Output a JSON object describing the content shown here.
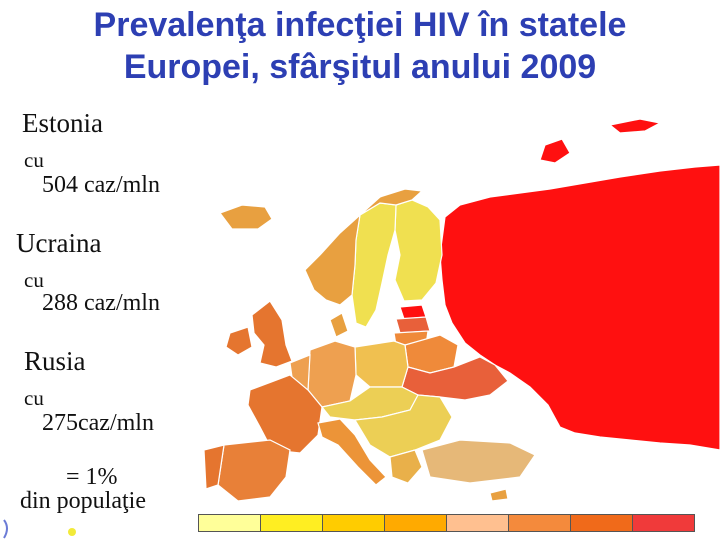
{
  "title": {
    "line1": "Prevalenţa infecţiei HIV în statele",
    "line2": "Europei, sfârşitul anului 2009"
  },
  "stats": [
    {
      "country": "Estonia",
      "prefix": "cu",
      "value": "504 caz/mln"
    },
    {
      "country": "Ucraina",
      "prefix": "cu",
      "value": "288 caz/mln"
    },
    {
      "country": "Rusia",
      "prefix": "cu",
      "value": "275caz/mln"
    }
  ],
  "summary": {
    "line1": "= 1%",
    "line2": "din populaţie"
  },
  "legend": {
    "colors": [
      "#ffff99",
      "#ffee22",
      "#ffcc00",
      "#ffaa00",
      "#ffc090",
      "#f48a3c",
      "#f06a1a",
      "#f03a3a",
      "#d0101a"
    ]
  },
  "map_colors": {
    "russia": "#ff1010",
    "ukraine": "#e8603a",
    "estonia": "#ff1010",
    "latvia": "#e8603a",
    "lithuania": "#ef8a3a",
    "belarus": "#ef8a3a",
    "finland": "#f0e050",
    "sweden": "#f0e050",
    "norway": "#e8a040",
    "uk": "#e5752f",
    "ireland": "#e5752f",
    "iceland": "#e8a040",
    "france": "#e5752f",
    "spain": "#e88038",
    "portugal": "#e5752f",
    "germany": "#eea050",
    "poland": "#f0c050",
    "central": "#eccf55",
    "balkans": "#eccf55",
    "italy": "#ec9438",
    "greece": "#e9b04a",
    "turkey": "#e6b878",
    "cyprus": "#e8a040",
    "denmark": "#e8a040"
  }
}
